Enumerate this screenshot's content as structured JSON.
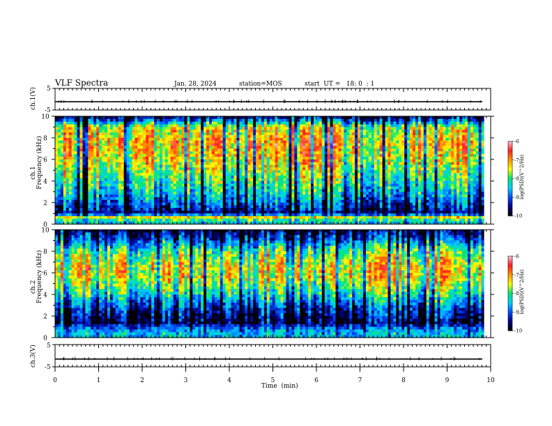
{
  "header": {
    "title": "VLF Spectra",
    "date": "Jan. 28, 2024",
    "station": "station=MOS",
    "start": "start  UT =   18: 0  : 1"
  },
  "colors": {
    "spectrogram_scale": [
      "#000000",
      "#00008c",
      "#0050ff",
      "#00d2ff",
      "#00e678",
      "#ffff00",
      "#ff9600",
      "#ff1e1e",
      "#ffc8dc"
    ]
  },
  "chart_data": [
    {
      "type": "line",
      "name": "ch1-waveform",
      "ylabel": "ch.1(V)",
      "xlim": [
        0,
        10
      ],
      "ylim": [
        -5,
        5
      ],
      "yticks": [
        "5",
        "-5"
      ],
      "baseline_level": -1.2
    },
    {
      "type": "heatmap",
      "name": "ch1-spectrogram",
      "ylabel_top": "ch.1",
      "ylabel": "Frequency (kHz)",
      "xlim": [
        0,
        9.85
      ],
      "ylim": [
        0,
        10
      ],
      "yticks": [
        "0",
        "2",
        "4",
        "6",
        "8",
        "10"
      ],
      "colorbar": {
        "label": "log(PSD)(V^2/Hz)",
        "range": [
          -10,
          -6
        ],
        "ticks": [
          "-6",
          "-7",
          "-8",
          "-9",
          "-10"
        ]
      },
      "band_profile": [
        {
          "f": 0.3,
          "level": -8.3
        },
        {
          "f": 0.6,
          "level": -7.2
        },
        {
          "f": 1.0,
          "level": -9.6
        },
        {
          "f": 1.6,
          "level": -9.2
        },
        {
          "f": 2.5,
          "level": -8.6
        },
        {
          "f": 4.0,
          "level": -8.0
        },
        {
          "f": 6.0,
          "level": -7.4
        },
        {
          "f": 7.5,
          "level": -7.1
        },
        {
          "f": 9.0,
          "level": -7.5
        },
        {
          "f": 9.8,
          "level": -9.4
        }
      ]
    },
    {
      "type": "heatmap",
      "name": "ch2-spectrogram",
      "ylabel_top": "ch.2",
      "ylabel": "Frequency (kHz)",
      "xlim": [
        0,
        9.85
      ],
      "ylim": [
        0,
        10
      ],
      "yticks": [
        "0",
        "2",
        "4",
        "6",
        "8",
        "10"
      ],
      "colorbar": {
        "label": "log(PSD)(V^2/Hz)",
        "range": [
          -10,
          -6
        ],
        "ticks": [
          "-6",
          "-7",
          "-8",
          "-9",
          "-10"
        ]
      },
      "band_profile": [
        {
          "f": 0.3,
          "level": -8.4
        },
        {
          "f": 0.8,
          "level": -8.7
        },
        {
          "f": 1.4,
          "level": -9.6
        },
        {
          "f": 2.5,
          "level": -9.2
        },
        {
          "f": 4.0,
          "level": -8.1
        },
        {
          "f": 5.5,
          "level": -7.3
        },
        {
          "f": 6.5,
          "level": -7.2
        },
        {
          "f": 8.0,
          "level": -7.8
        },
        {
          "f": 9.2,
          "level": -9.0
        },
        {
          "f": 9.9,
          "level": -9.5
        }
      ]
    },
    {
      "type": "line",
      "name": "ch3-waveform",
      "ylabel": "ch.3(V)",
      "xlim": [
        0,
        10
      ],
      "ylim": [
        -5,
        5
      ],
      "yticks": [
        "5",
        "-5"
      ],
      "baseline_level": -1.5
    }
  ],
  "xaxis": {
    "label": "Time  (min)",
    "range": [
      0,
      10
    ],
    "ticks": [
      "0",
      "1",
      "2",
      "3",
      "4",
      "5",
      "6",
      "7",
      "8",
      "9",
      "10"
    ]
  }
}
